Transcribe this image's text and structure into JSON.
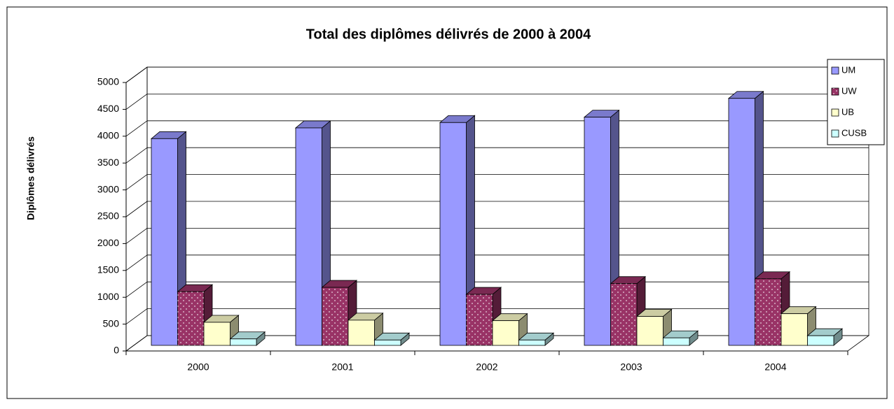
{
  "chart_data": {
    "type": "bar3d",
    "title": "Total des diplômes délivrés de 2000 à 2004",
    "y_label": "Diplômes délivrés",
    "categories": [
      "2000",
      "2001",
      "2002",
      "2003",
      "2004"
    ],
    "series": [
      {
        "name": "UM",
        "color": "#9999ff",
        "values": [
          3850,
          4050,
          4150,
          4250,
          4600
        ]
      },
      {
        "name": "UW",
        "color": "#993366",
        "values": [
          1000,
          1080,
          950,
          1150,
          1240
        ]
      },
      {
        "name": "UB",
        "color": "#ffffcc",
        "values": [
          430,
          470,
          460,
          540,
          590
        ]
      },
      {
        "name": "CUSB",
        "color": "#ccffff",
        "values": [
          120,
          100,
          100,
          140,
          180
        ]
      }
    ],
    "ylim": [
      0,
      5000
    ],
    "yticks": [
      0,
      500,
      1000,
      1500,
      2000,
      2500,
      3000,
      3500,
      4000,
      4500,
      5000
    ],
    "grid": true,
    "legend": "right"
  }
}
